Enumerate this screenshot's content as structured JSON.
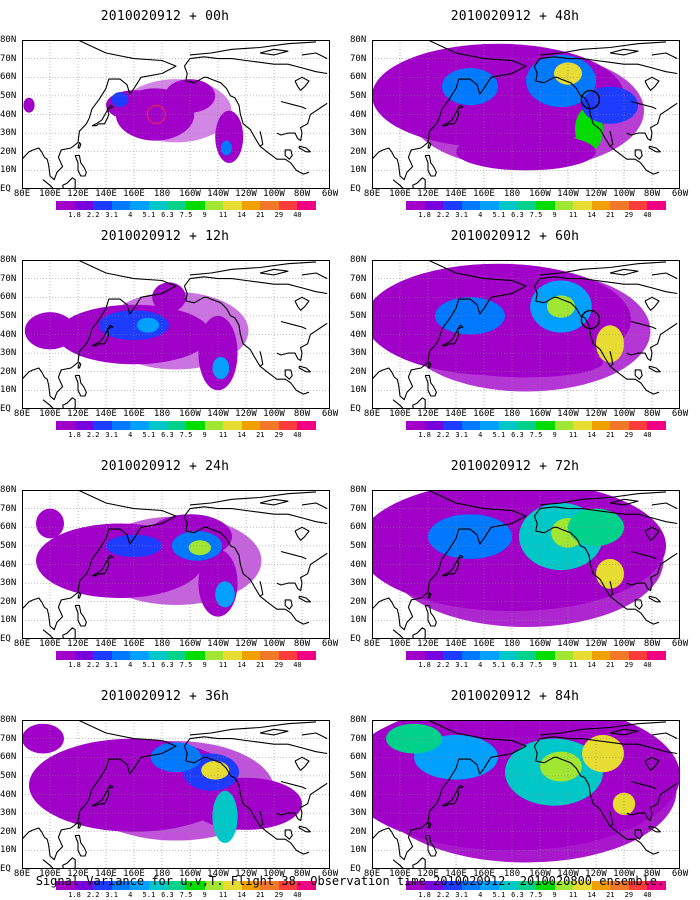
{
  "caption": "Signal Variance for u,v,T. Flight 38. Observation time 2010020912. 2010020800 ensemble.",
  "colorbar": {
    "levels": [
      "1.8",
      "2.2",
      "3.1",
      "4",
      "5.1",
      "6.3",
      "7.5",
      "9",
      "11",
      "14",
      "21",
      "29",
      "40"
    ],
    "colors": [
      "#a000c8",
      "#7800dc",
      "#1e3cff",
      "#0078ff",
      "#00a0ff",
      "#00c8c8",
      "#00d28c",
      "#00dc00",
      "#a0e632",
      "#e6dc32",
      "#f0a000",
      "#f07828",
      "#fa3c3c",
      "#f00082"
    ]
  },
  "axes": {
    "lat_labels": [
      "80N",
      "70N",
      "60N",
      "50N",
      "40N",
      "30N",
      "20N",
      "10N",
      "EQ"
    ],
    "lon_labels": [
      "80E",
      "100E",
      "120E",
      "140E",
      "160E",
      "180",
      "160W",
      "140W",
      "120W",
      "100W",
      "80W",
      "60W"
    ]
  },
  "panels": [
    {
      "title": "2010020912 + 00h",
      "column": 0,
      "row": 0,
      "level": 0.12,
      "has_marker": true,
      "marker_color": "#e0206a",
      "blobs": [
        {
          "lon": 175,
          "lat": 40,
          "rx": 28,
          "ry": 14,
          "c": 0
        },
        {
          "lon": 160,
          "lat": 45,
          "rx": 20,
          "ry": 8,
          "c": 0
        },
        {
          "lon": 200,
          "lat": 50,
          "rx": 18,
          "ry": 9,
          "c": 0
        },
        {
          "lon": 150,
          "lat": 48,
          "rx": 6,
          "ry": 4,
          "c": 2
        },
        {
          "lon": 228,
          "lat": 28,
          "rx": 10,
          "ry": 14,
          "c": 0
        },
        {
          "lon": 226,
          "lat": 22,
          "rx": 4,
          "ry": 4,
          "c": 3
        },
        {
          "lon": 85,
          "lat": 45,
          "rx": 4,
          "ry": 4,
          "c": 0
        }
      ]
    },
    {
      "title": "2010020912 + 12h",
      "column": 0,
      "row": 1,
      "level": 0.25,
      "has_marker": false,
      "blobs": [
        {
          "lon": 160,
          "lat": 40,
          "rx": 55,
          "ry": 16,
          "c": 0
        },
        {
          "lon": 220,
          "lat": 30,
          "rx": 14,
          "ry": 20,
          "c": 0
        },
        {
          "lon": 100,
          "lat": 42,
          "rx": 18,
          "ry": 10,
          "c": 0
        },
        {
          "lon": 160,
          "lat": 45,
          "rx": 25,
          "ry": 8,
          "c": 2
        },
        {
          "lon": 170,
          "lat": 45,
          "rx": 8,
          "ry": 4,
          "c": 4
        },
        {
          "lon": 222,
          "lat": 22,
          "rx": 6,
          "ry": 6,
          "c": 4
        },
        {
          "lon": 185,
          "lat": 60,
          "rx": 12,
          "ry": 8,
          "c": 0
        }
      ]
    },
    {
      "title": "2010020912 + 24h",
      "column": 0,
      "row": 2,
      "level": 0.35,
      "has_marker": false,
      "blobs": [
        {
          "lon": 150,
          "lat": 42,
          "rx": 60,
          "ry": 20,
          "c": 0
        },
        {
          "lon": 200,
          "lat": 55,
          "rx": 30,
          "ry": 12,
          "c": 0
        },
        {
          "lon": 220,
          "lat": 30,
          "rx": 14,
          "ry": 18,
          "c": 0
        },
        {
          "lon": 205,
          "lat": 50,
          "rx": 18,
          "ry": 8,
          "c": 3
        },
        {
          "lon": 207,
          "lat": 49,
          "rx": 8,
          "ry": 4,
          "c": 8
        },
        {
          "lon": 160,
          "lat": 50,
          "rx": 20,
          "ry": 6,
          "c": 2
        },
        {
          "lon": 225,
          "lat": 24,
          "rx": 7,
          "ry": 7,
          "c": 4
        },
        {
          "lon": 100,
          "lat": 62,
          "rx": 10,
          "ry": 8,
          "c": 0
        }
      ]
    },
    {
      "title": "2010020912 + 36h",
      "column": 0,
      "row": 3,
      "level": 0.45,
      "has_marker": false,
      "blobs": [
        {
          "lon": 160,
          "lat": 45,
          "rx": 75,
          "ry": 25,
          "c": 0
        },
        {
          "lon": 240,
          "lat": 35,
          "rx": 40,
          "ry": 14,
          "c": 0
        },
        {
          "lon": 215,
          "lat": 52,
          "rx": 20,
          "ry": 10,
          "c": 2
        },
        {
          "lon": 218,
          "lat": 53,
          "rx": 10,
          "ry": 5,
          "c": 9
        },
        {
          "lon": 225,
          "lat": 28,
          "rx": 9,
          "ry": 14,
          "c": 5
        },
        {
          "lon": 190,
          "lat": 60,
          "rx": 18,
          "ry": 8,
          "c": 3
        },
        {
          "lon": 95,
          "lat": 70,
          "rx": 15,
          "ry": 8,
          "c": 0
        }
      ]
    },
    {
      "title": "2010020912 + 48h",
      "column": 1,
      "row": 0,
      "level": 0.6,
      "has_marker": true,
      "marker_color": "#000000",
      "blobs": [
        {
          "lon": 170,
          "lat": 50,
          "rx": 90,
          "ry": 28,
          "c": 0
        },
        {
          "lon": 215,
          "lat": 58,
          "rx": 25,
          "ry": 14,
          "c": 3
        },
        {
          "lon": 220,
          "lat": 62,
          "rx": 10,
          "ry": 6,
          "c": 9
        },
        {
          "lon": 235,
          "lat": 32,
          "rx": 10,
          "ry": 12,
          "c": 7
        },
        {
          "lon": 190,
          "lat": 20,
          "rx": 50,
          "ry": 10,
          "c": 0
        },
        {
          "lon": 150,
          "lat": 55,
          "rx": 20,
          "ry": 10,
          "c": 3
        },
        {
          "lon": 250,
          "lat": 45,
          "rx": 20,
          "ry": 10,
          "c": 2
        }
      ]
    },
    {
      "title": "2010020912 + 60h",
      "column": 1,
      "row": 1,
      "level": 0.65,
      "has_marker": true,
      "marker_color": "#000000",
      "blobs": [
        {
          "lon": 170,
          "lat": 48,
          "rx": 95,
          "ry": 30,
          "c": 0
        },
        {
          "lon": 215,
          "lat": 55,
          "rx": 22,
          "ry": 14,
          "c": 4
        },
        {
          "lon": 215,
          "lat": 55,
          "rx": 10,
          "ry": 6,
          "c": 8
        },
        {
          "lon": 250,
          "lat": 35,
          "rx": 10,
          "ry": 10,
          "c": 9
        },
        {
          "lon": 150,
          "lat": 50,
          "rx": 25,
          "ry": 10,
          "c": 3
        },
        {
          "lon": 190,
          "lat": 25,
          "rx": 55,
          "ry": 8,
          "c": 0
        }
      ]
    },
    {
      "title": "2010020912 + 72h",
      "column": 1,
      "row": 2,
      "level": 0.75,
      "has_marker": false,
      "blobs": [
        {
          "lon": 180,
          "lat": 50,
          "rx": 110,
          "ry": 35,
          "c": 0
        },
        {
          "lon": 215,
          "lat": 55,
          "rx": 30,
          "ry": 18,
          "c": 5
        },
        {
          "lon": 220,
          "lat": 57,
          "rx": 12,
          "ry": 8,
          "c": 8
        },
        {
          "lon": 240,
          "lat": 60,
          "rx": 20,
          "ry": 10,
          "c": 6
        },
        {
          "lon": 250,
          "lat": 35,
          "rx": 10,
          "ry": 8,
          "c": 9
        },
        {
          "lon": 150,
          "lat": 55,
          "rx": 30,
          "ry": 12,
          "c": 3
        }
      ]
    },
    {
      "title": "2010020912 + 84h",
      "column": 1,
      "row": 3,
      "level": 0.85,
      "has_marker": false,
      "blobs": [
        {
          "lon": 180,
          "lat": 50,
          "rx": 120,
          "ry": 40,
          "c": 0
        },
        {
          "lon": 210,
          "lat": 52,
          "rx": 35,
          "ry": 18,
          "c": 5
        },
        {
          "lon": 215,
          "lat": 55,
          "rx": 15,
          "ry": 8,
          "c": 8
        },
        {
          "lon": 245,
          "lat": 62,
          "rx": 15,
          "ry": 10,
          "c": 9
        },
        {
          "lon": 260,
          "lat": 35,
          "rx": 8,
          "ry": 6,
          "c": 9
        },
        {
          "lon": 140,
          "lat": 60,
          "rx": 30,
          "ry": 12,
          "c": 4
        },
        {
          "lon": 110,
          "lat": 70,
          "rx": 20,
          "ry": 8,
          "c": 6
        }
      ]
    }
  ]
}
